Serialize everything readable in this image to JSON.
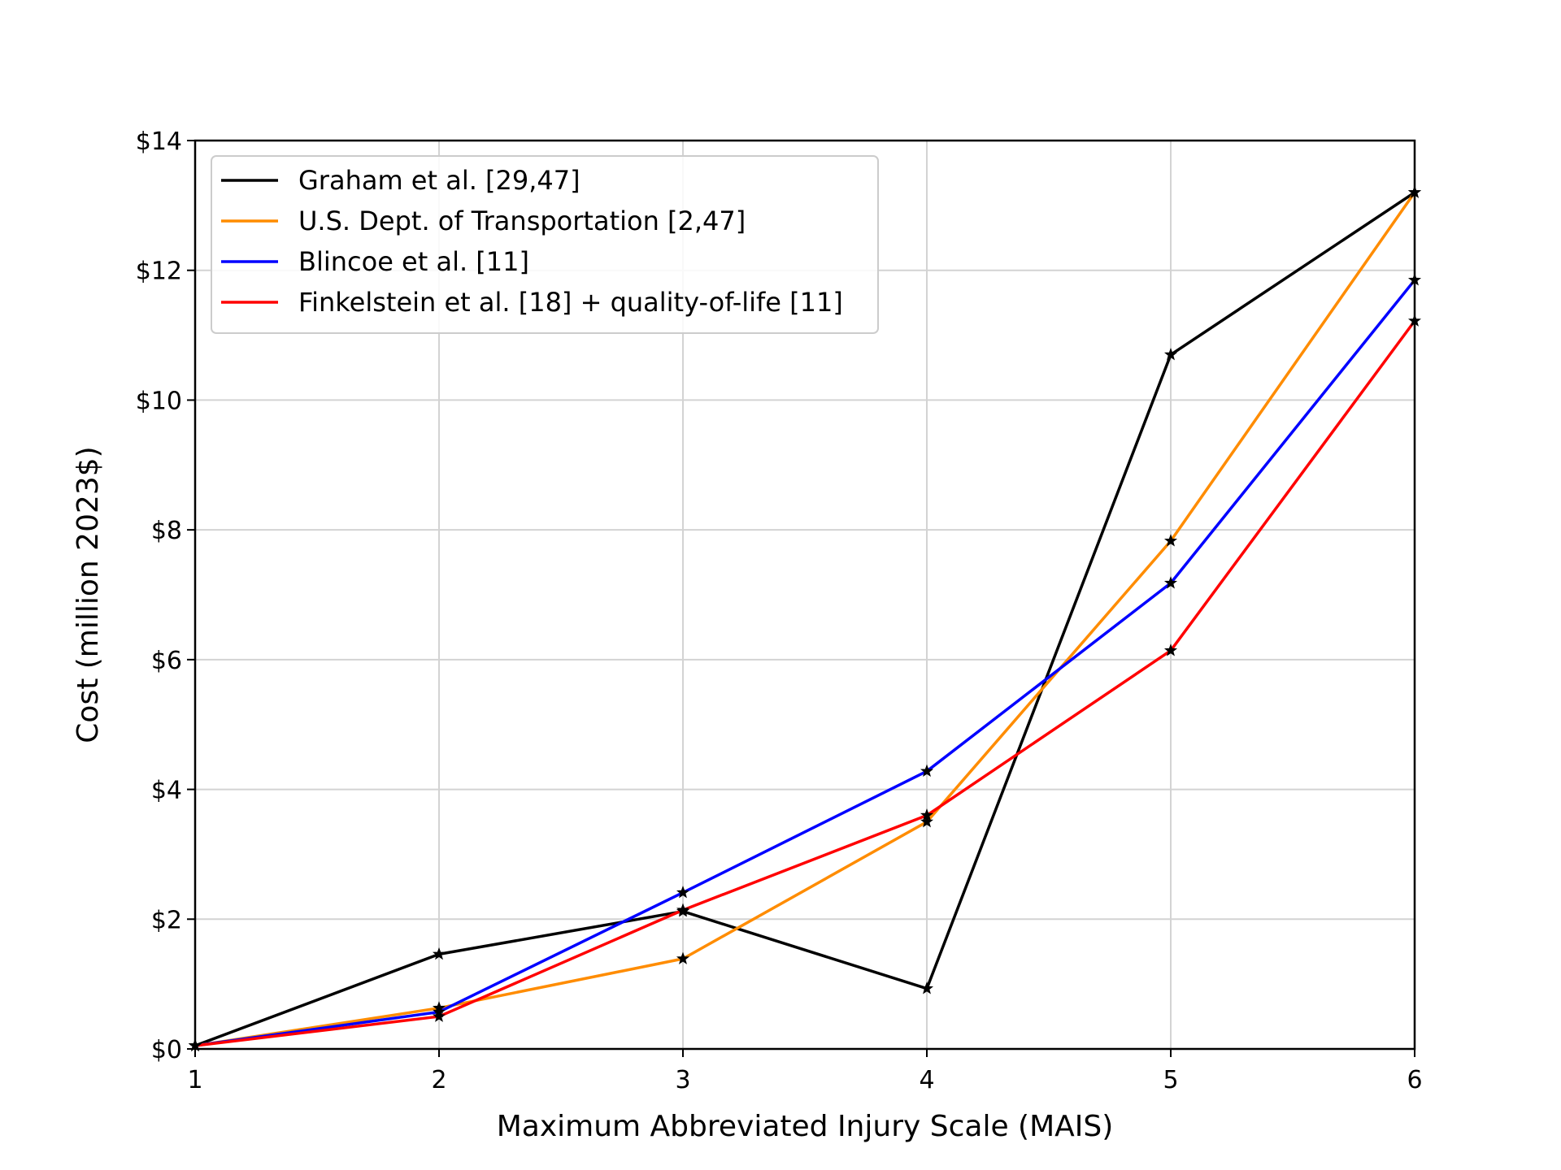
{
  "chart_data": {
    "type": "line",
    "title": "",
    "xlabel": "Maximum Abbreviated Injury Scale (MAIS)",
    "ylabel": "Cost (million 2023$)",
    "x": [
      1,
      2,
      3,
      4,
      5,
      6
    ],
    "xlim": [
      1,
      6
    ],
    "ylim": [
      0,
      14
    ],
    "xticks": [
      "1",
      "2",
      "3",
      "4",
      "5",
      "6"
    ],
    "yticks": [
      "$0",
      "$2",
      "$4",
      "$6",
      "$8",
      "$10",
      "$12",
      "$14"
    ],
    "grid": true,
    "legend_position": "top-left",
    "marker": "star",
    "marker_color": "#000000",
    "series": [
      {
        "name": "Graham et al. [29,47]",
        "color": "#000000",
        "values": [
          0.05,
          1.46,
          2.12,
          0.93,
          10.7,
          13.2
        ]
      },
      {
        "name": "U.S. Dept. of Transportation [2,47]",
        "color": "#ff8c00",
        "values": [
          0.05,
          0.63,
          1.39,
          3.5,
          7.83,
          13.2
        ]
      },
      {
        "name": "Blincoe et al. [11]",
        "color": "#0000ff",
        "values": [
          0.05,
          0.57,
          2.41,
          4.28,
          7.18,
          11.85
        ]
      },
      {
        "name": "Finkelstein et al. [18] + quality-of-life [11]",
        "color": "#ff0000",
        "values": [
          0.05,
          0.5,
          2.14,
          3.6,
          6.14,
          11.22
        ]
      }
    ]
  }
}
